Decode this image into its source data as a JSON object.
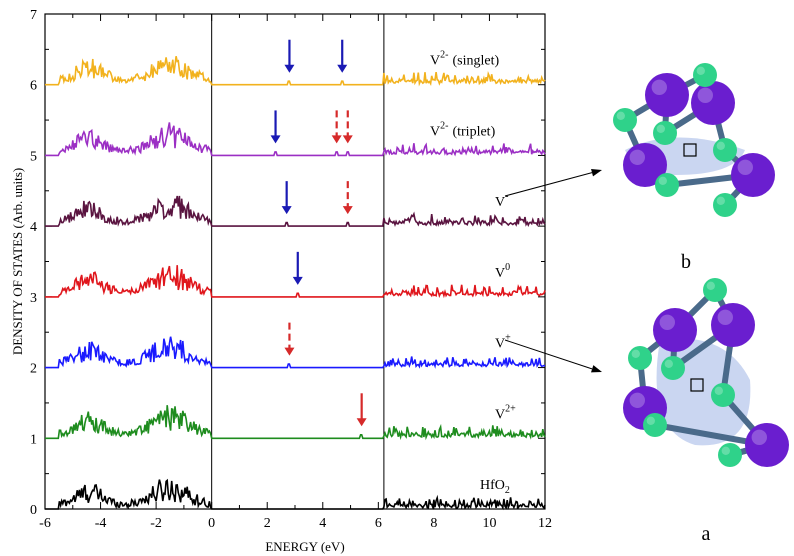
{
  "chart_data": {
    "type": "line",
    "title": "",
    "xlabel": "ENERGY (eV)",
    "ylabel": "DENSITY OF STATES (Arb. units)",
    "xlim": [
      -6,
      12
    ],
    "ylim": [
      0,
      7
    ],
    "x_ticks": [
      -6,
      -4,
      -2,
      0,
      2,
      4,
      6,
      8,
      10,
      12
    ],
    "y_ticks": [
      0,
      1,
      2,
      3,
      4,
      5,
      6,
      7
    ],
    "vertical_lines": [
      0,
      6.2
    ],
    "grid": false,
    "series": [
      {
        "name": "HfO2",
        "label_main": "HfO",
        "label_sub": "2",
        "offset": 0,
        "color": "#000000",
        "arrows": []
      },
      {
        "name": "V2+",
        "label_main": "V",
        "label_sup": "2+",
        "offset": 1,
        "color": "#1e8c1e",
        "arrows": [
          {
            "energy": 5.4,
            "color": "#d62a2a",
            "style": "solid"
          }
        ]
      },
      {
        "name": "V+",
        "label_main": "V",
        "label_sup": "+",
        "offset": 2,
        "color": "#1a1aff",
        "arrows": [
          {
            "energy": 2.8,
            "color": "#d62a2a",
            "style": "dashed"
          }
        ]
      },
      {
        "name": "V0",
        "label_main": "V",
        "label_sup": "0",
        "offset": 3,
        "color": "#e0161c",
        "arrows": [
          {
            "energy": 3.1,
            "color": "#1a1ab4",
            "style": "solid"
          }
        ]
      },
      {
        "name": "V-",
        "label_main": "V",
        "label_sup": "-",
        "offset": 4,
        "color": "#5a1440",
        "arrows": [
          {
            "energy": 2.7,
            "color": "#1a1ab4",
            "style": "solid"
          },
          {
            "energy": 4.9,
            "color": "#d62a2a",
            "style": "dashed"
          }
        ]
      },
      {
        "name": "V2- (triplet)",
        "label_main": "V",
        "label_sup": "2-",
        "label_extra": "(triplet)",
        "offset": 5,
        "color": "#9b2fc4",
        "arrows": [
          {
            "energy": 2.3,
            "color": "#1a1ab4",
            "style": "solid"
          },
          {
            "energy": 4.5,
            "color": "#d62a2a",
            "style": "dashed"
          },
          {
            "energy": 4.9,
            "color": "#d62a2a",
            "style": "dashed"
          }
        ]
      },
      {
        "name": "V2- (singlet)",
        "label_main": "V",
        "label_sup": "2-",
        "label_extra": "(singlet)",
        "offset": 6,
        "color": "#f2b21e",
        "arrows": [
          {
            "energy": 2.8,
            "color": "#1a1ab4",
            "style": "solid"
          },
          {
            "energy": 4.7,
            "color": "#1a1ab4",
            "style": "solid"
          }
        ]
      }
    ]
  },
  "panels": [
    {
      "label": "b"
    },
    {
      "label": "a"
    }
  ],
  "colors": {
    "atom_large": "#6a1ecf",
    "atom_small": "#2fd28a",
    "bond": "#4a6a8a",
    "density_cloud": "#b8c8ec"
  }
}
